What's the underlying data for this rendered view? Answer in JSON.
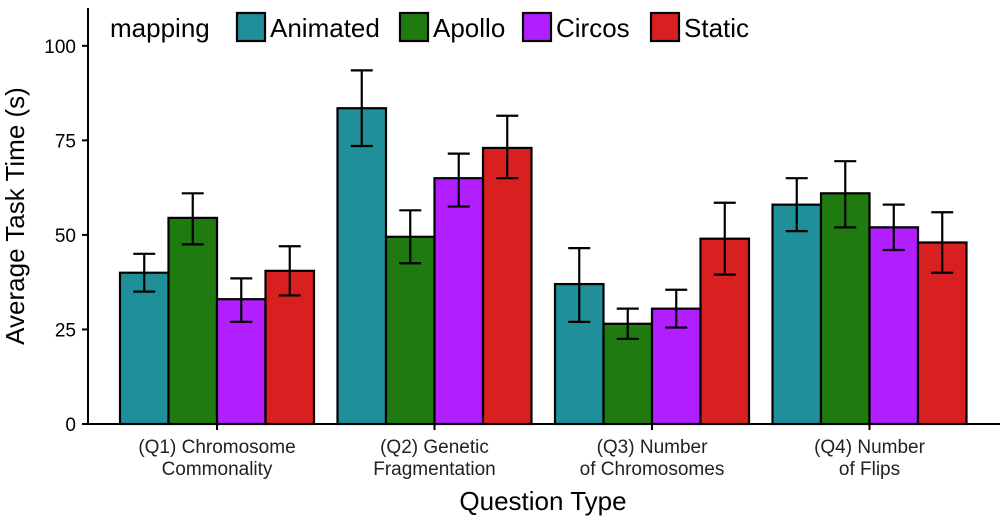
{
  "chart_data": {
    "type": "bar",
    "xlabel": "Question Type",
    "ylabel": "Average Task Time (s)",
    "ylim": [
      0,
      110
    ],
    "yticks": [
      0,
      25,
      50,
      75,
      100
    ],
    "grid": false,
    "legend": {
      "title": "mapping",
      "placement": "top-left"
    },
    "categories": [
      [
        "(Q1) Chromosome",
        "Commonality"
      ],
      [
        "(Q2) Genetic",
        "Fragmentation"
      ],
      [
        "(Q3) Number",
        "of Chromosomes"
      ],
      [
        "(Q4) Number",
        "of Flips"
      ]
    ],
    "series": [
      {
        "name": "Animated",
        "color": "#1f8f99",
        "values": [
          40,
          83.5,
          37,
          58
        ],
        "err_low": [
          35,
          73.5,
          27,
          51
        ],
        "err_high": [
          45,
          93.5,
          46.5,
          65
        ]
      },
      {
        "name": "Apollo",
        "color": "#1f7a0f",
        "values": [
          54.5,
          49.5,
          26.5,
          61
        ],
        "err_low": [
          47.5,
          42.5,
          22.5,
          52
        ],
        "err_high": [
          61,
          56.5,
          30.5,
          69.5
        ]
      },
      {
        "name": "Circos",
        "color": "#b21fff",
        "values": [
          33,
          65,
          30.5,
          52
        ],
        "err_low": [
          27,
          57.5,
          25.5,
          46
        ],
        "err_high": [
          38.5,
          71.5,
          35.5,
          58
        ]
      },
      {
        "name": "Static",
        "color": "#d92020",
        "values": [
          40.5,
          73,
          49,
          48
        ],
        "err_low": [
          34,
          65,
          39.5,
          40
        ],
        "err_high": [
          47,
          81.5,
          58.5,
          56
        ]
      }
    ]
  }
}
